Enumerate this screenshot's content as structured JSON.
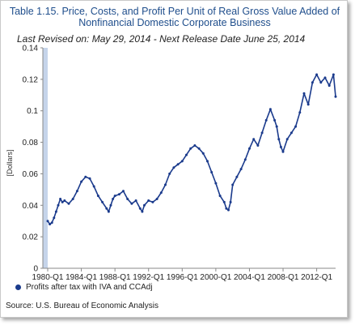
{
  "header": {
    "title_line1": "Table 1.15. Price, Costs, and Profit Per Unit of Real Gross Value Added of",
    "title_line2": "Nonfinancial Domestic Corporate Business",
    "subtitle": "Last Revised on: May 29, 2014 - Next Release Date June 25, 2014"
  },
  "legend": {
    "label": "Profits after tax with IVA and CCAdj"
  },
  "footer": {
    "source": "Source: U.S. Bureau of Economic Analysis"
  },
  "colors": {
    "line": "#1a3a8c",
    "title": "#1f4e8c",
    "axis_band": "#c5d4ea"
  },
  "chart_data": {
    "type": "line",
    "ylabel": "[Dollars]",
    "xlabel": "",
    "ylim": [
      0,
      0.14
    ],
    "yticks": [
      0,
      0.02,
      0.04,
      0.06,
      0.08,
      0.1,
      0.12,
      0.14
    ],
    "ytick_labels": [
      "0",
      "0.02",
      "0.04",
      "0.06",
      "0.08",
      "0.1",
      "0.12",
      "0.14"
    ],
    "xlim": [
      1980,
      2014.25
    ],
    "xticks": [
      1980,
      1984,
      1988,
      1992,
      1996,
      2000,
      2004,
      2008,
      2012
    ],
    "xtick_labels": [
      "1980-Q1",
      "1984-Q1",
      "1988-Q1",
      "1992-Q1",
      "1996-Q1",
      "2000-Q1",
      "2004-Q1",
      "2008-Q1",
      "2012-Q1"
    ],
    "grid": false,
    "legend_position": "bottom-left",
    "series": [
      {
        "name": "Profits after tax with IVA and CCAdj",
        "x": [
          1980,
          1980.25,
          1980.5,
          1980.75,
          1981,
          1981.25,
          1981.5,
          1981.75,
          1982,
          1982.5,
          1983,
          1983.5,
          1984,
          1984.5,
          1985,
          1985.5,
          1986,
          1986.5,
          1987,
          1987.25,
          1987.5,
          1987.75,
          1988,
          1988.5,
          1989,
          1989.5,
          1990,
          1990.5,
          1991,
          1991.25,
          1991.5,
          1992,
          1992.5,
          1993,
          1993.5,
          1994,
          1994.5,
          1995,
          1995.5,
          1996,
          1996.5,
          1997,
          1997.5,
          1998,
          1998.5,
          1999,
          1999.5,
          2000,
          2000.5,
          2001,
          2001.25,
          2001.5,
          2001.75,
          2002,
          2002.5,
          2003,
          2003.5,
          2004,
          2004.5,
          2005,
          2005.5,
          2006,
          2006.5,
          2007,
          2007.25,
          2007.5,
          2007.75,
          2008,
          2008.5,
          2009,
          2009.5,
          2010,
          2010.5,
          2011,
          2011.5,
          2012,
          2012.5,
          2013,
          2013.5,
          2014,
          2014.25
        ],
        "y": [
          0.03,
          0.028,
          0.029,
          0.032,
          0.036,
          0.04,
          0.044,
          0.042,
          0.043,
          0.041,
          0.044,
          0.049,
          0.055,
          0.058,
          0.057,
          0.052,
          0.046,
          0.042,
          0.038,
          0.036,
          0.04,
          0.044,
          0.046,
          0.047,
          0.049,
          0.044,
          0.041,
          0.043,
          0.038,
          0.036,
          0.04,
          0.043,
          0.042,
          0.044,
          0.048,
          0.053,
          0.06,
          0.064,
          0.066,
          0.068,
          0.072,
          0.076,
          0.078,
          0.076,
          0.073,
          0.068,
          0.061,
          0.054,
          0.046,
          0.042,
          0.038,
          0.037,
          0.042,
          0.053,
          0.058,
          0.063,
          0.069,
          0.076,
          0.082,
          0.078,
          0.086,
          0.094,
          0.101,
          0.094,
          0.09,
          0.082,
          0.077,
          0.074,
          0.082,
          0.086,
          0.09,
          0.099,
          0.111,
          0.104,
          0.118,
          0.123,
          0.118,
          0.121,
          0.116,
          0.123,
          0.109
        ]
      }
    ]
  }
}
